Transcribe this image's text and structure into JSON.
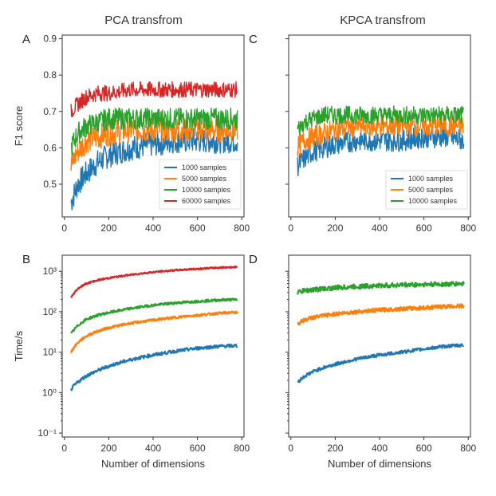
{
  "titles": {
    "left": "PCA transfrom",
    "right": "KPCA transfrom"
  },
  "colors": {
    "s1000": "#1f77b4",
    "s5000": "#ff7f0e",
    "s10000": "#2ca02c",
    "s60000": "#d62728"
  },
  "chart_data": [
    {
      "panel": "A",
      "type": "line",
      "title": "PCA transfrom",
      "xlabel": "",
      "ylabel": "F1 score",
      "xlim": [
        -10,
        810
      ],
      "ylim": [
        0.41,
        0.91
      ],
      "xticks": [
        "0",
        "200",
        "400",
        "600",
        "800"
      ],
      "yticks": [
        "0.5",
        "0.6",
        "0.7",
        "0.8",
        "0.9"
      ],
      "legend": "lower-right",
      "series": [
        {
          "name": "1000 samples",
          "color": "#1f77b4",
          "x": [
            30,
            60,
            100,
            150,
            200,
            300,
            400,
            500,
            600,
            700,
            780
          ],
          "y": [
            0.45,
            0.5,
            0.53,
            0.56,
            0.58,
            0.6,
            0.61,
            0.62,
            0.62,
            0.62,
            0.62
          ],
          "noise": 0.035
        },
        {
          "name": "5000 samples",
          "color": "#ff7f0e",
          "x": [
            30,
            60,
            100,
            150,
            200,
            300,
            400,
            500,
            600,
            700,
            780
          ],
          "y": [
            0.55,
            0.59,
            0.62,
            0.63,
            0.64,
            0.65,
            0.65,
            0.65,
            0.65,
            0.65,
            0.65
          ],
          "noise": 0.035
        },
        {
          "name": "10000 samples",
          "color": "#2ca02c",
          "x": [
            30,
            60,
            100,
            150,
            200,
            300,
            400,
            500,
            600,
            700,
            780
          ],
          "y": [
            0.6,
            0.64,
            0.66,
            0.67,
            0.68,
            0.68,
            0.68,
            0.68,
            0.68,
            0.68,
            0.68
          ],
          "noise": 0.03
        },
        {
          "name": "60000 samples",
          "color": "#d62728",
          "x": [
            30,
            60,
            100,
            150,
            200,
            300,
            400,
            500,
            600,
            700,
            780
          ],
          "y": [
            0.7,
            0.72,
            0.74,
            0.75,
            0.75,
            0.76,
            0.76,
            0.76,
            0.76,
            0.76,
            0.76
          ],
          "noise": 0.022
        }
      ]
    },
    {
      "panel": "C",
      "type": "line",
      "title": "KPCA transfrom",
      "xlabel": "",
      "ylabel": "",
      "xlim": [
        -10,
        810
      ],
      "ylim": [
        0.41,
        0.91
      ],
      "xticks": [
        "0",
        "200",
        "400",
        "600",
        "800"
      ],
      "yticks": [],
      "legend": "lower-right",
      "series": [
        {
          "name": "1000 samples",
          "color": "#1f77b4",
          "x": [
            30,
            60,
            100,
            150,
            200,
            300,
            400,
            500,
            600,
            700,
            780
          ],
          "y": [
            0.55,
            0.57,
            0.59,
            0.6,
            0.61,
            0.62,
            0.62,
            0.62,
            0.63,
            0.63,
            0.62
          ],
          "noise": 0.03
        },
        {
          "name": "5000 samples",
          "color": "#ff7f0e",
          "x": [
            30,
            60,
            100,
            150,
            200,
            300,
            400,
            500,
            600,
            700,
            780
          ],
          "y": [
            0.6,
            0.62,
            0.63,
            0.64,
            0.65,
            0.66,
            0.66,
            0.66,
            0.66,
            0.66,
            0.66
          ],
          "noise": 0.03
        },
        {
          "name": "10000 samples",
          "color": "#2ca02c",
          "x": [
            30,
            60,
            100,
            150,
            200,
            300,
            400,
            500,
            600,
            700,
            780
          ],
          "y": [
            0.65,
            0.67,
            0.68,
            0.69,
            0.69,
            0.69,
            0.69,
            0.69,
            0.69,
            0.69,
            0.69
          ],
          "noise": 0.025
        }
      ]
    },
    {
      "panel": "B",
      "type": "line",
      "log_y": true,
      "xlabel": "Number of dimensions",
      "ylabel": "Time/s",
      "xlim": [
        -10,
        810
      ],
      "ylim": [
        0.08,
        2500
      ],
      "xticks": [
        "0",
        "200",
        "400",
        "600",
        "800"
      ],
      "yticks": [
        "10⁻¹",
        "10⁰",
        "10¹",
        "10²",
        "10³"
      ],
      "series": [
        {
          "name": "1000 samples",
          "color": "#1f77b4",
          "x": [
            30,
            60,
            100,
            150,
            200,
            300,
            400,
            500,
            600,
            700,
            780
          ],
          "y": [
            1.2,
            1.8,
            2.6,
            3.5,
            4.5,
            6.5,
            8.5,
            10.5,
            12.5,
            14,
            14.5
          ],
          "noise": 0.04
        },
        {
          "name": "5000 samples",
          "color": "#ff7f0e",
          "x": [
            30,
            60,
            100,
            150,
            200,
            300,
            400,
            500,
            600,
            700,
            780
          ],
          "y": [
            10,
            17,
            25,
            33,
            40,
            52,
            62,
            72,
            82,
            92,
            97
          ],
          "noise": 0.03
        },
        {
          "name": "10000 samples",
          "color": "#2ca02c",
          "x": [
            30,
            60,
            100,
            150,
            200,
            300,
            400,
            500,
            600,
            700,
            780
          ],
          "y": [
            28,
            45,
            65,
            82,
            95,
            120,
            145,
            165,
            180,
            195,
            200
          ],
          "noise": 0.03
        },
        {
          "name": "60000 samples",
          "color": "#d62728",
          "x": [
            30,
            60,
            100,
            150,
            200,
            300,
            400,
            500,
            600,
            700,
            780
          ],
          "y": [
            220,
            370,
            500,
            600,
            680,
            820,
            950,
            1060,
            1150,
            1230,
            1280
          ],
          "noise": 0.02
        }
      ]
    },
    {
      "panel": "D",
      "type": "line",
      "log_y": true,
      "xlabel": "Number of dimensions",
      "ylabel": "",
      "xlim": [
        -10,
        810
      ],
      "ylim": [
        0.08,
        2500
      ],
      "xticks": [
        "0",
        "200",
        "400",
        "600",
        "800"
      ],
      "yticks": [],
      "series": [
        {
          "name": "1000 samples",
          "color": "#1f77b4",
          "x": [
            30,
            60,
            100,
            150,
            200,
            300,
            400,
            500,
            600,
            700,
            780
          ],
          "y": [
            1.8,
            2.5,
            3.3,
            4.2,
            5,
            6.8,
            8.5,
            10,
            12,
            14,
            15
          ],
          "noise": 0.04
        },
        {
          "name": "5000 samples",
          "color": "#ff7f0e",
          "x": [
            30,
            60,
            100,
            150,
            200,
            300,
            400,
            500,
            600,
            700,
            780
          ],
          "y": [
            50,
            62,
            72,
            80,
            88,
            100,
            110,
            118,
            125,
            135,
            140
          ],
          "noise": 0.05
        },
        {
          "name": "10000 samples",
          "color": "#2ca02c",
          "x": [
            30,
            60,
            100,
            150,
            200,
            300,
            400,
            500,
            600,
            700,
            780
          ],
          "y": [
            300,
            330,
            350,
            370,
            390,
            420,
            440,
            460,
            470,
            480,
            490
          ],
          "noise": 0.06
        }
      ]
    }
  ]
}
